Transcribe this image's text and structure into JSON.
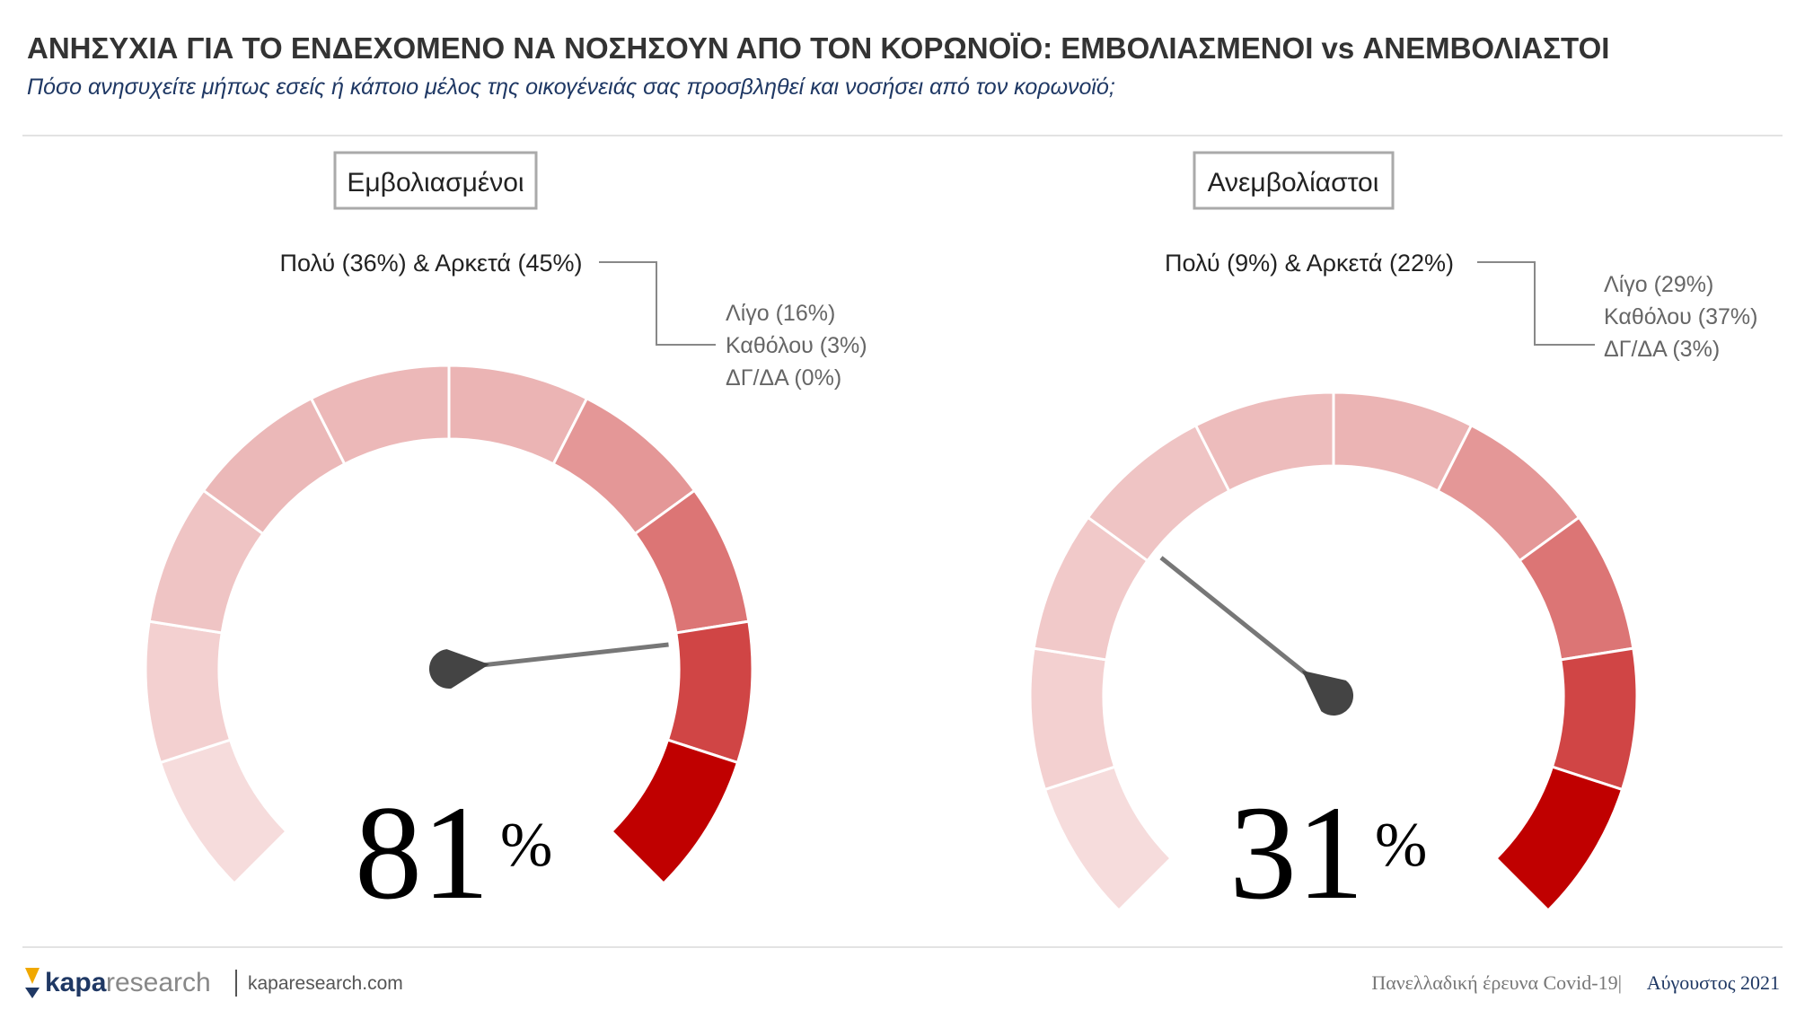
{
  "header": {
    "title": "ΑΝΗΣΥΧΙΑ ΓΙΑ ΤΟ ΕΝΔΕΧΟΜΕΝΟ ΝΑ ΝΟΣΗΣΟΥΝ ΑΠΟ ΤΟΝ ΚΟΡΩΝΟΪΟ: ΕΜΒΟΛΙΑΣΜΕΝΟΙ vs ΑΝΕΜΒΟΛΙΑΣΤΟΙ",
    "subtitle": "Πόσο ανησυχείτε μήπως εσείς ή κάποιο μέλος της οικογένειάς σας προσβληθεί και νοσήσει από τον κορωνοϊό;"
  },
  "chart_data": [
    {
      "type": "gauge",
      "title": "Εμβολιασμένοι",
      "values": [
        81
      ],
      "value_labels": [
        "81"
      ],
      "value_suffix": "%",
      "ylim": [
        0,
        100
      ],
      "annotation": "Πολύ (36%) & Αρκετά (45%)",
      "details": [
        "Λίγο (16%)",
        "Καθόλου (3%)",
        "ΔΓ/ΔΑ (0%)"
      ],
      "segment_colors": [
        "#f6dcdc",
        "#f3d0d0",
        "#efc4c4",
        "#ebb8b8",
        "#ecb8b8",
        "#ebb4b4",
        "#e49797",
        "#dc7575",
        "#d04545",
        "#c00000"
      ],
      "needle_color": "#777777"
    },
    {
      "type": "gauge",
      "title": "Ανεμβολίαστοι",
      "values": [
        31
      ],
      "value_labels": [
        "31"
      ],
      "value_suffix": "%",
      "ylim": [
        0,
        100
      ],
      "annotation": "Πολύ (9%) & Αρκετά (22%)",
      "details": [
        "Λίγο (29%)",
        "Καθόλου (37%)",
        "ΔΓ/ΔΑ (3%)"
      ],
      "segment_colors": [
        "#f6dcdc",
        "#f3d0d0",
        "#f1c9c9",
        "#efc4c4",
        "#edbcbc",
        "#ebb4b4",
        "#e49797",
        "#dc7575",
        "#d04545",
        "#c00000"
      ],
      "needle_color": "#777777"
    }
  ],
  "footer": {
    "logo_bold": "kapa",
    "logo_light": "research",
    "website": "kaparesearch.com",
    "survey": "Πανελλαδική έρευνα Covid-19|",
    "date": "Αύγουστος 2021"
  }
}
